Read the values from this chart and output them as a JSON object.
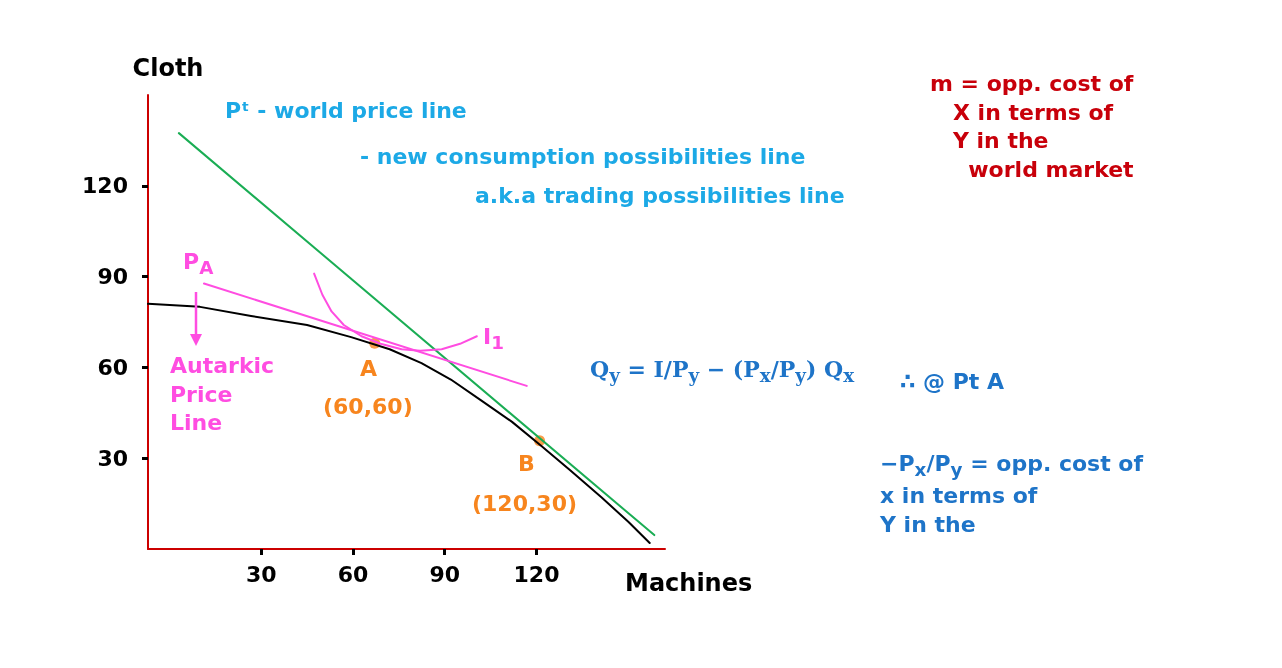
{
  "chart_data": {
    "type": "line",
    "xlabel": "Machines",
    "ylabel": "Cloth",
    "xlim": [
      -7,
      162
    ],
    "ylim": [
      0,
      150
    ],
    "xticks": [
      30,
      60,
      90,
      120
    ],
    "yticks": [
      30,
      60,
      90,
      120
    ],
    "grid": false,
    "marker": "none",
    "line_style": "solid",
    "series": [
      {
        "color": "#000000",
        "x": [
          -7,
          10,
          26.7,
          45,
          59.4,
          72,
          82.4,
          92,
          102,
          112,
          121.6,
          131,
          141.3,
          150,
          157
        ],
        "values": [
          81,
          80,
          77,
          74,
          70,
          66,
          61.4,
          56,
          49,
          42,
          34,
          26,
          17,
          9,
          2
        ]
      },
      {
        "color": "#1aad54",
        "x": [
          3.1,
          158.5
        ],
        "values": [
          137.4,
          4.6
        ]
      },
      {
        "color": "#ff4de1",
        "x": [
          11.3,
          116.8
        ],
        "values": [
          87.7,
          53.9
        ]
      },
      {
        "color": "#ff4de1",
        "x": [
          47.3,
          50,
          53,
          57,
          62.8,
          69,
          75.9,
          82,
          89,
          95,
          100.5
        ],
        "values": [
          91,
          84,
          78.5,
          74,
          70.3,
          67.8,
          66,
          65.5,
          66,
          67.8,
          70.3
        ]
      },
      {
        "type": "scatter",
        "color": "#f7851e",
        "marker": "circle",
        "x": [
          67.1,
          121
        ],
        "values": [
          68,
          35.8
        ]
      }
    ],
    "annotations": [
      "Pᵗ - world price line",
      "- new consumption possibilities line",
      "a.k.a trading possibilities line",
      "m = opp. cost of\n   X in terms of\n   Y in the\n     world market",
      "P$_{A}$",
      "Autarkic\nPrice\nLine",
      "I$_{1}$",
      "A",
      "(60,60)",
      "B",
      "(120,30)",
      "Q$_{y}$ = I/P$_{y}$ − (P$_{x}$/P$_{y}$) Q$_{x}$",
      "∴ @ Pt A",
      "−P$_{x}$/P$_{y}$ = opp. cost of\nx in terms of\nY in the"
    ]
  }
}
